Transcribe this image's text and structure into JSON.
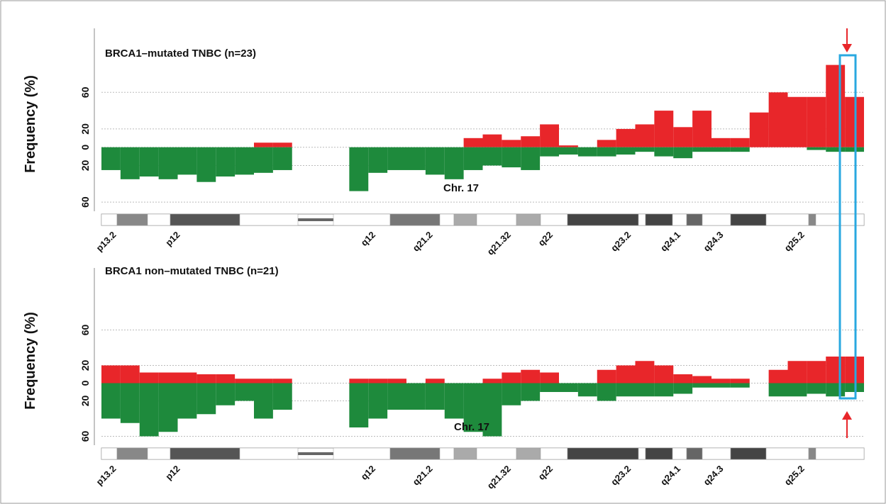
{
  "chart_data": [
    {
      "type": "bar",
      "title": "BRCA1–mutated TNBC (n=23)",
      "y_label": "Frequency (%)",
      "annotation": "Chr. 17",
      "x": [
        1,
        3,
        5,
        7,
        9,
        11,
        13,
        15,
        17,
        19,
        21,
        23,
        25,
        27,
        29,
        31,
        33,
        35,
        37,
        39,
        41,
        43,
        45,
        47,
        49,
        51,
        53,
        55,
        57,
        59,
        61,
        63,
        65,
        67,
        69,
        71,
        73,
        75,
        77,
        79
      ],
      "series": [
        {
          "color": "#e8262a",
          "values": [
            0,
            0,
            0,
            0,
            0,
            0,
            0,
            0,
            5,
            5,
            null,
            null,
            null,
            0,
            0,
            0,
            0,
            0,
            0,
            10,
            14,
            8,
            12,
            25,
            2,
            0,
            8,
            20,
            25,
            40,
            22,
            40,
            10,
            10,
            38,
            60,
            55,
            55,
            90,
            55
          ]
        },
        {
          "color": "#1e8a3c",
          "values": [
            -25,
            -35,
            -32,
            -35,
            -30,
            -38,
            -32,
            -30,
            -28,
            -25,
            null,
            null,
            null,
            -48,
            -28,
            -25,
            -25,
            -30,
            -35,
            -25,
            -20,
            -22,
            -25,
            -10,
            -8,
            -10,
            -10,
            -8,
            -5,
            -10,
            -12,
            -5,
            -5,
            -5,
            0,
            0,
            0,
            -3,
            -5,
            -5
          ]
        }
      ],
      "xlim": [
        0,
        80
      ],
      "ylim": [
        -70,
        130
      ],
      "yticks": [
        {
          "value": -60,
          "label": "60"
        },
        {
          "value": -20,
          "label": "20"
        },
        0,
        20,
        60
      ],
      "grid": true,
      "cytobands": [
        {
          "label": "p13.2",
          "x": 1.6
        },
        {
          "label": "p12",
          "x": 8.3
        },
        {
          "label": "q12",
          "x": 28.8
        },
        {
          "label": "q21.2",
          "x": 34.8
        },
        {
          "label": "q21.32",
          "x": 43
        },
        {
          "label": "q22",
          "x": 47.4
        },
        {
          "label": "q23.2",
          "x": 55.6
        },
        {
          "label": "q24.1",
          "x": 60.8
        },
        {
          "label": "q24.3",
          "x": 65.3
        },
        {
          "label": "q25.2",
          "x": 73.8
        }
      ]
    },
    {
      "type": "bar",
      "title": "BRCA1 non–mutated TNBC (n=21)",
      "y_label": "Frequency (%)",
      "annotation": "Chr. 17",
      "x": [
        1,
        3,
        5,
        7,
        9,
        11,
        13,
        15,
        17,
        19,
        21,
        23,
        25,
        27,
        29,
        31,
        33,
        35,
        37,
        39,
        41,
        43,
        45,
        47,
        49,
        51,
        53,
        55,
        57,
        59,
        61,
        63,
        65,
        67,
        69,
        71,
        73,
        75,
        77,
        79
      ],
      "series": [
        {
          "color": "#e8262a",
          "values": [
            20,
            20,
            12,
            12,
            12,
            10,
            10,
            5,
            5,
            5,
            null,
            null,
            null,
            5,
            5,
            5,
            0,
            5,
            0,
            0,
            5,
            12,
            15,
            12,
            0,
            0,
            15,
            20,
            25,
            20,
            10,
            8,
            5,
            5,
            null,
            15,
            25,
            25,
            30,
            30
          ]
        },
        {
          "color": "#1e8a3c",
          "values": [
            -40,
            -45,
            -60,
            -55,
            -40,
            -35,
            -25,
            -20,
            -40,
            -30,
            null,
            null,
            null,
            -50,
            -40,
            -30,
            -30,
            -30,
            -40,
            -55,
            -60,
            -25,
            -20,
            -10,
            -10,
            -15,
            -20,
            -15,
            -15,
            -15,
            -12,
            -5,
            -5,
            -5,
            null,
            -15,
            -15,
            -12,
            -15,
            -10
          ]
        }
      ],
      "xlim": [
        0,
        80
      ],
      "ylim": [
        -70,
        130
      ],
      "yticks": [
        {
          "value": -60,
          "label": "60"
        },
        {
          "value": -20,
          "label": "20"
        },
        0,
        20,
        60
      ],
      "grid": true,
      "cytobands": [
        {
          "label": "p13.2",
          "x": 1.6
        },
        {
          "label": "p12",
          "x": 8.3
        },
        {
          "label": "q12",
          "x": 28.8
        },
        {
          "label": "q21.2",
          "x": 34.8
        },
        {
          "label": "q21.32",
          "x": 43
        },
        {
          "label": "q22",
          "x": 47.4
        },
        {
          "label": "q23.2",
          "x": 55.6
        },
        {
          "label": "q24.1",
          "x": 60.8
        },
        {
          "label": "q24.3",
          "x": 65.3
        },
        {
          "label": "q25.2",
          "x": 73.8
        }
      ]
    }
  ]
}
